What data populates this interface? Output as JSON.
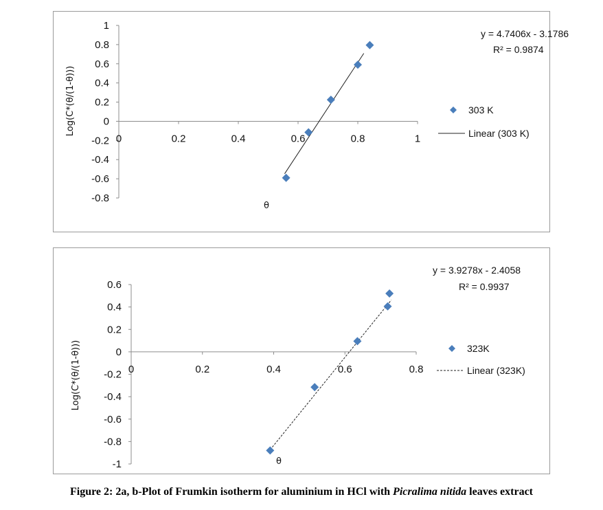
{
  "chart_data": [
    {
      "type": "scatter",
      "x_label": "θ",
      "y_label": "Log(C*(θ/(1-θ)))",
      "xlim": [
        0,
        1
      ],
      "ylim": [
        -0.8,
        1
      ],
      "x_ticks": [
        "0",
        "0.2",
        "0.4",
        "0.6",
        "0.8",
        "1"
      ],
      "y_ticks": [
        "1",
        "0.8",
        "0.6",
        "0.4",
        "0.2",
        "0",
        "-0.2",
        "-0.4",
        "-0.6",
        "-0.8"
      ],
      "series": [
        {
          "name": "303 K",
          "color": "#4a7ebb",
          "x": [
            0.56,
            0.635,
            0.71,
            0.8,
            0.84
          ],
          "y": [
            -0.59,
            -0.115,
            0.225,
            0.59,
            0.795
          ]
        }
      ],
      "trendline": {
        "name": "Linear (303 K)",
        "slope": 4.7406,
        "intercept": -3.1786,
        "style": "solid",
        "x_range": [
          0.555,
          0.82
        ]
      },
      "equation": "y = 4.7406x - 3.1786",
      "r2": "R² = 0.9874",
      "grid": false,
      "legend": "right"
    },
    {
      "type": "scatter",
      "x_label": "θ",
      "y_label": "Log(C*(θ/(1-θ)))",
      "xlim": [
        0,
        0.8
      ],
      "ylim": [
        -1,
        0.6
      ],
      "x_ticks": [
        "0",
        "0.2",
        "0.4",
        "0.6",
        "0.8"
      ],
      "y_ticks": [
        "0.6",
        "0.4",
        "0.2",
        "0",
        "-0.2",
        "-0.4",
        "-0.6",
        "-0.8",
        "-1"
      ],
      "series": [
        {
          "name": "323K",
          "color": "#4a7ebb",
          "x": [
            0.39,
            0.515,
            0.635,
            0.72,
            0.725
          ],
          "y": [
            -0.88,
            -0.315,
            0.095,
            0.405,
            0.52
          ]
        }
      ],
      "trendline": {
        "name": "Linear (323K)",
        "slope": 3.9278,
        "intercept": -2.4058,
        "style": "dashed",
        "x_range": [
          0.39,
          0.73
        ]
      },
      "equation": "y = 3.9278x - 2.4058",
      "r2": "R² = 0.9937",
      "grid": false,
      "legend": "right"
    }
  ],
  "caption": {
    "prefix": "Figure 2: 2a, b-Plot of Frumkin isotherm for aluminium in HCl with ",
    "species": "Picralima nitida",
    "suffix": " leaves extract"
  }
}
